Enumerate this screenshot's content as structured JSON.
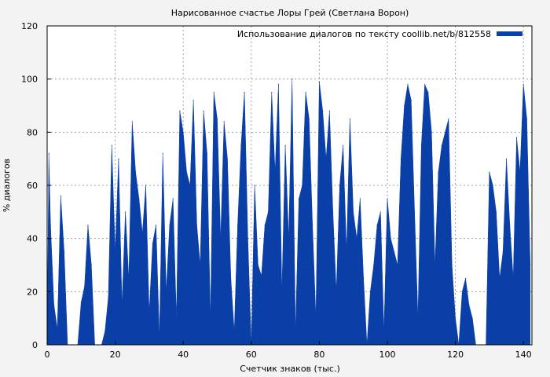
{
  "chart_data": {
    "type": "area",
    "title": "Нарисованное счастье Лоры Грей (Светлана Ворон)",
    "xlabel": "Счетчик знаков (тыс.)",
    "ylabel": "% диалогов",
    "xlim": [
      0,
      142.5
    ],
    "ylim": [
      0,
      120
    ],
    "xticks": [
      0,
      20,
      40,
      60,
      80,
      100,
      120,
      140
    ],
    "yticks": [
      0,
      20,
      40,
      60,
      80,
      100,
      120
    ],
    "grid": true,
    "legend_position": "top-right",
    "series": [
      {
        "name": "Использование диалогов по тексту coollib.net/b/812558",
        "color": "#0b3fa8",
        "x": [
          0,
          0.5,
          1,
          2,
          3,
          4,
          5,
          6,
          7,
          8,
          9,
          10,
          11,
          12,
          13,
          14,
          15,
          16,
          17,
          18,
          19,
          20,
          21,
          22,
          23,
          24,
          25,
          26,
          27,
          28,
          29,
          30,
          31,
          32,
          33,
          34,
          35,
          36,
          37,
          38,
          39,
          40,
          41,
          42,
          43,
          44,
          45,
          46,
          47,
          48,
          49,
          50,
          51,
          52,
          53,
          54,
          55,
          56,
          57,
          58,
          59,
          60,
          61,
          62,
          63,
          64,
          65,
          66,
          67,
          68,
          69,
          70,
          71,
          72,
          73,
          74,
          75,
          76,
          77,
          78,
          79,
          80,
          81,
          82,
          83,
          84,
          85,
          86,
          87,
          88,
          89,
          90,
          91,
          92,
          93,
          94,
          95,
          96,
          97,
          98,
          99,
          100,
          101,
          102,
          103,
          104,
          105,
          106,
          107,
          108,
          109,
          110,
          111,
          112,
          113,
          114,
          115,
          116,
          117,
          118,
          119,
          120,
          121,
          122,
          123,
          124,
          125,
          126,
          127,
          128,
          129,
          130,
          131,
          132,
          133,
          134,
          135,
          136,
          137,
          138,
          139,
          140,
          141,
          142
        ],
        "y": [
          0,
          72,
          45,
          15,
          6,
          56,
          35,
          0,
          0,
          0,
          0,
          16,
          22,
          45,
          30,
          0,
          0,
          0,
          5,
          18,
          75,
          35,
          70,
          15,
          50,
          25,
          84,
          65,
          55,
          42,
          60,
          12,
          38,
          45,
          3,
          72,
          20,
          45,
          55,
          10,
          88,
          80,
          65,
          60,
          92,
          45,
          30,
          88,
          72,
          10,
          95,
          85,
          40,
          84,
          70,
          25,
          5,
          45,
          75,
          95,
          40,
          0,
          60,
          30,
          26,
          45,
          50,
          95,
          65,
          98,
          20,
          75,
          40,
          100,
          5,
          55,
          60,
          95,
          85,
          45,
          10,
          99,
          88,
          70,
          88,
          50,
          20,
          60,
          75,
          35,
          85,
          50,
          40,
          55,
          25,
          0,
          20,
          30,
          45,
          50,
          5,
          55,
          40,
          35,
          30,
          70,
          90,
          98,
          92,
          50,
          10,
          75,
          98,
          95,
          80,
          30,
          65,
          75,
          80,
          85,
          30,
          10,
          0,
          20,
          25,
          15,
          10,
          0,
          0,
          0,
          0,
          65,
          60,
          50,
          25,
          35,
          70,
          45,
          25,
          78,
          65,
          98,
          85,
          30
        ]
      }
    ]
  }
}
